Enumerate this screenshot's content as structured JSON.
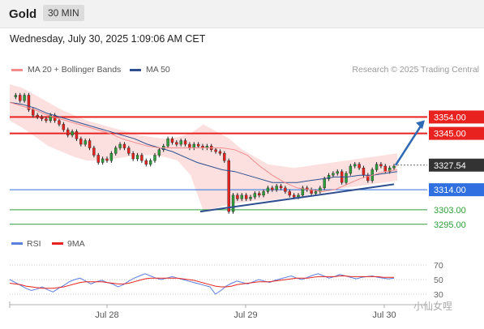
{
  "header": {
    "symbol": "Gold",
    "timeframe": "30 MIN"
  },
  "datetime": "Wednesday, July 30, 2025 1:09:06 AM CET",
  "legend": {
    "ma20_label": "MA 20 + Bollinger Bands",
    "ma50_label": "MA 50",
    "ma20_color": "#f28b8b",
    "ma50_color": "#2f4f8f"
  },
  "credit": "Research © 2025 Trading Central",
  "watermark": "小仙女㖏",
  "chart_data": [
    {
      "type": "line",
      "title": "",
      "x_labels": [
        "Jul 28",
        "Jul 29",
        "Jul 30"
      ],
      "ylim": [
        3290,
        3372
      ],
      "levels": [
        {
          "value": 3354.0,
          "label": "3354.00",
          "color": "#e8231f",
          "kind": "resistance"
        },
        {
          "value": 3345.0,
          "label": "3345.00",
          "color": "#e8231f",
          "kind": "resistance"
        },
        {
          "value": 3327.54,
          "label": "3327.54",
          "color": "#333333",
          "kind": "last-price"
        },
        {
          "value": 3314.0,
          "label": "3314.00",
          "color": "#2f6fdf",
          "kind": "pivot"
        },
        {
          "value": 3303.0,
          "label": "3303.00",
          "color": "#2e9e3a",
          "kind": "support"
        },
        {
          "value": 3295.0,
          "label": "3295.00",
          "color": "#2e9e3a",
          "kind": "support"
        }
      ],
      "price_series": [
        3365,
        3366,
        3363,
        3366,
        3358,
        3355,
        3354,
        3353,
        3352,
        3355,
        3352,
        3350,
        3347,
        3344,
        3346,
        3342,
        3339,
        3341,
        3337,
        3333,
        3329,
        3331,
        3330,
        3334,
        3337,
        3339,
        3337,
        3334,
        3331,
        3333,
        3330,
        3328,
        3330,
        3333,
        3336,
        3338,
        3342,
        3340,
        3339,
        3341,
        3339,
        3337,
        3339,
        3338,
        3337,
        3338,
        3336,
        3335,
        3334,
        3330,
        3302,
        3311,
        3309,
        3311,
        3309,
        3310,
        3312,
        3311,
        3313,
        3315,
        3314,
        3316,
        3315,
        3313,
        3311,
        3310,
        3311,
        3315,
        3314,
        3312,
        3313,
        3315,
        3320,
        3322,
        3323,
        3324,
        3318,
        3323,
        3327,
        3328,
        3326,
        3322,
        3319,
        3325,
        3328,
        3327,
        3324,
        3326,
        3327
      ],
      "ma20": [
        3362,
        3360,
        3358,
        3355,
        3353,
        3351,
        3349,
        3347,
        3345,
        3342,
        3340,
        3338,
        3337,
        3337,
        3337,
        3337,
        3337,
        3337,
        3336,
        3333,
        3327,
        3322,
        3318,
        3315,
        3314,
        3313,
        3314,
        3317,
        3320,
        3322,
        3324,
        3325
      ],
      "ma50": [
        3362,
        3361,
        3359,
        3356,
        3354,
        3352,
        3350,
        3348,
        3346,
        3344,
        3342,
        3339,
        3337,
        3335,
        3332,
        3329,
        3327,
        3325,
        3324,
        3322,
        3320,
        3318,
        3318,
        3318,
        3319,
        3320,
        3321,
        3321,
        3322,
        3322,
        3323,
        3324
      ],
      "bollinger_upper": [
        3372,
        3370,
        3366,
        3362,
        3358,
        3355,
        3352,
        3350,
        3348,
        3346,
        3344,
        3343,
        3342,
        3343,
        3345,
        3350,
        3346,
        3342,
        3336,
        3332,
        3328,
        3327,
        3326,
        3327,
        3328,
        3329,
        3330,
        3331,
        3332,
        3333,
        3334
      ],
      "bollinger_lower": [
        3352,
        3348,
        3343,
        3338,
        3335,
        3332,
        3330,
        3330,
        3331,
        3332,
        3333,
        3333,
        3332,
        3330,
        3322,
        3302,
        3304,
        3306,
        3307,
        3308,
        3308,
        3309,
        3310,
        3311,
        3312,
        3314,
        3315,
        3316,
        3317,
        3318,
        3319
      ],
      "trendline": {
        "from": 3302,
        "to": 3317
      },
      "projection": {
        "from": 3327.54,
        "to": 3354
      }
    },
    {
      "type": "line",
      "title": "",
      "legend": [
        "RSI",
        "9MA"
      ],
      "colors": {
        "rsi": "#5b7fdd",
        "ma9": "#e8231f"
      },
      "yticks": [
        70,
        50,
        30
      ],
      "ylim": [
        20,
        80
      ],
      "rsi": [
        50,
        46,
        42,
        38,
        35,
        37,
        40,
        36,
        33,
        38,
        42,
        47,
        50,
        52,
        48,
        44,
        47,
        49,
        46,
        44,
        40,
        43,
        48,
        52,
        55,
        58,
        55,
        52,
        50,
        52,
        54,
        52,
        50,
        48,
        46,
        44,
        42,
        40,
        30,
        35,
        41,
        45,
        48,
        46,
        44,
        47,
        50,
        48,
        46,
        49,
        51,
        53,
        55,
        52,
        50,
        53,
        56,
        58,
        55,
        52,
        54,
        57,
        55,
        53,
        51,
        53,
        54,
        55,
        53,
        52,
        51,
        52
      ],
      "ma9": [
        45,
        44,
        43,
        41,
        40,
        39,
        38,
        38,
        38,
        39,
        40,
        42,
        44,
        46,
        47,
        47,
        47,
        47,
        46,
        45,
        44,
        44,
        45,
        47,
        49,
        51,
        52,
        52,
        52,
        52,
        52,
        52,
        51,
        50,
        49,
        47,
        45,
        43,
        41,
        40,
        40,
        41,
        43,
        44,
        45,
        46,
        47,
        47,
        47,
        48,
        49,
        50,
        51,
        52,
        52,
        52,
        53,
        54,
        54,
        54,
        54,
        55,
        55,
        54,
        54,
        54,
        54,
        54,
        54,
        53,
        53,
        53
      ]
    }
  ]
}
